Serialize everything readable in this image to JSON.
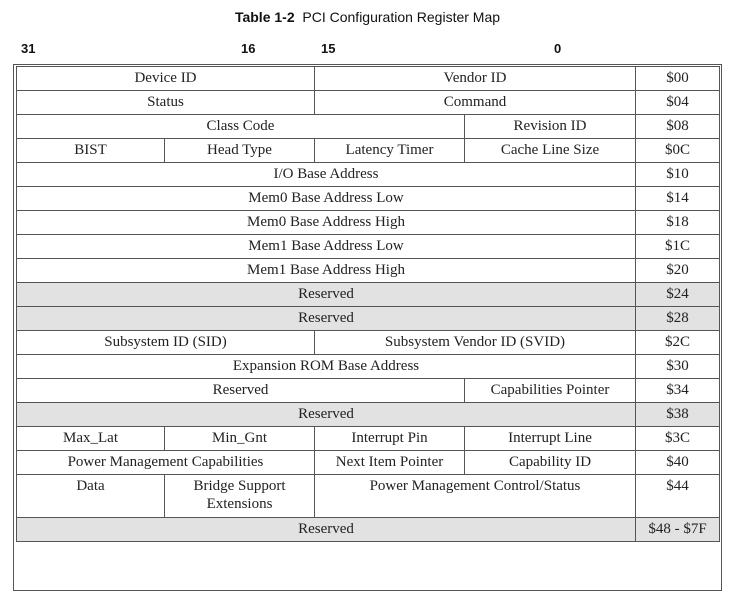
{
  "caption": {
    "number": "Table 1-2",
    "title": "PCI Configuration Register Map"
  },
  "bit_labels": {
    "b31": "31",
    "b16": "16",
    "b15": "15",
    "b0": "0"
  },
  "rows": {
    "r00": {
      "c1": "Device ID",
      "c2": "Vendor ID",
      "addr": "$00"
    },
    "r04": {
      "c1": "Status",
      "c2": "Command",
      "addr": "$04"
    },
    "r08": {
      "c1": "Class Code",
      "c2": "Revision ID",
      "addr": "$08"
    },
    "r0c": {
      "c1": "BIST",
      "c2": "Head Type",
      "c3": "Latency Timer",
      "c4": "Cache Line Size",
      "addr": "$0C"
    },
    "r10": {
      "c1": "I/O Base Address",
      "addr": "$10"
    },
    "r14": {
      "c1": "Mem0 Base Address Low",
      "addr": "$14"
    },
    "r18": {
      "c1": "Mem0 Base Address High",
      "addr": "$18"
    },
    "r1c": {
      "c1": "Mem1 Base Address Low",
      "addr": "$1C"
    },
    "r20": {
      "c1": "Mem1 Base Address High",
      "addr": "$20"
    },
    "r24": {
      "c1": "Reserved",
      "addr": "$24"
    },
    "r28": {
      "c1": "Reserved",
      "addr": "$28"
    },
    "r2c": {
      "c1": "Subsystem ID (SID)",
      "c2": "Subsystem Vendor ID (SVID)",
      "addr": "$2C"
    },
    "r30": {
      "c1": "Expansion ROM Base Address",
      "addr": "$30"
    },
    "r34": {
      "c1": "Reserved",
      "c2": "Capabilities Pointer",
      "addr": "$34"
    },
    "r38": {
      "c1": "Reserved",
      "addr": "$38"
    },
    "r3c": {
      "c1": "Max_Lat",
      "c2": "Min_Gnt",
      "c3": "Interrupt Pin",
      "c4": "Interrupt Line",
      "addr": "$3C"
    },
    "r40": {
      "c1": "Power Management Capabilities",
      "c2": "Next Item Pointer",
      "c3": "Capability ID",
      "addr": "$40"
    },
    "r44": {
      "c1": "Data",
      "c2": "Bridge Support Extensions",
      "c3": "Power Management Control/Status",
      "addr": "$44"
    },
    "r48": {
      "c1": "Reserved",
      "addr": "$48 - $7F"
    }
  },
  "colors": {
    "reserved_fill": "#e2e2e2",
    "border": "#555555"
  }
}
